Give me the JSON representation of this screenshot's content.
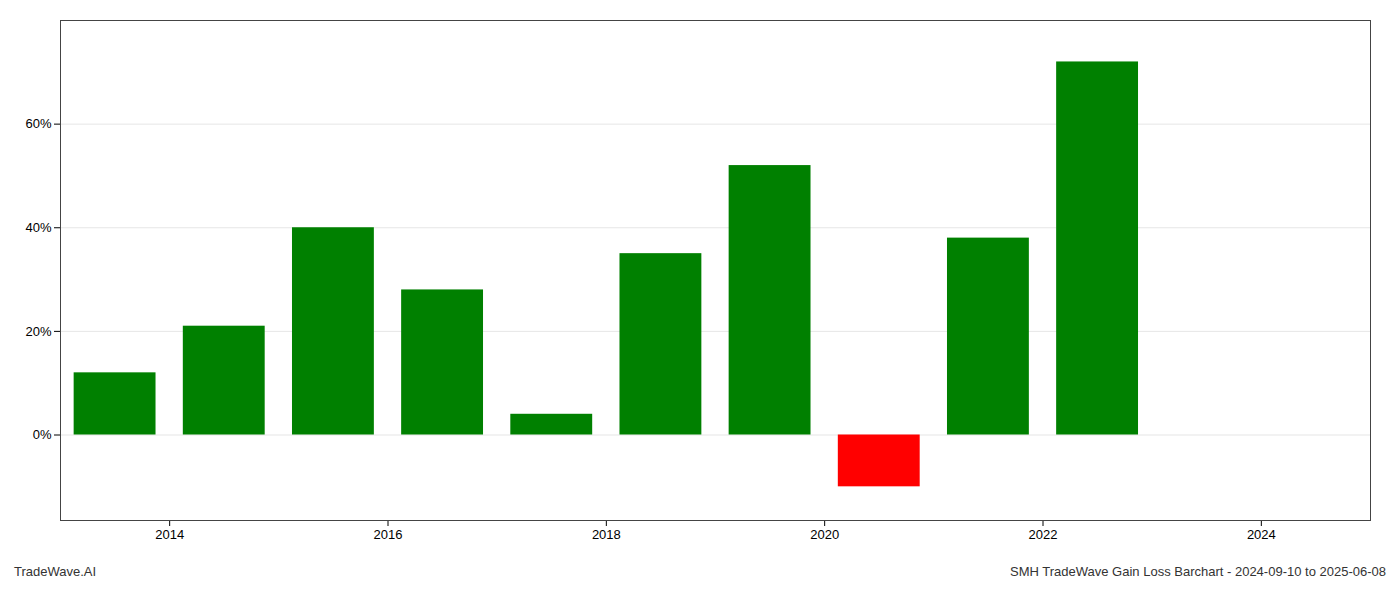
{
  "chart_data": {
    "type": "bar",
    "x": [
      2013.5,
      2014.5,
      2015.5,
      2016.5,
      2017.5,
      2018.5,
      2019.5,
      2020.5,
      2021.5,
      2022.5
    ],
    "values": [
      0.12,
      0.21,
      0.4,
      0.28,
      0.04,
      0.35,
      0.52,
      -0.1,
      0.38,
      0.72
    ],
    "colors": [
      "#008000",
      "#008000",
      "#008000",
      "#008000",
      "#008000",
      "#008000",
      "#008000",
      "#ff0000",
      "#008000",
      "#008000"
    ],
    "xlim": [
      2013.0,
      2025.0
    ],
    "xticks": [
      2014,
      2016,
      2018,
      2020,
      2022,
      2024
    ],
    "ylim": [
      -0.165,
      0.8
    ],
    "yticks": [
      {
        "value": 0.0,
        "label": "0%"
      },
      {
        "value": 0.2,
        "label": "20%"
      },
      {
        "value": 0.4,
        "label": "40%"
      },
      {
        "value": 0.6,
        "label": "60%"
      }
    ],
    "grid": true,
    "annotations": [
      "TradeWave.AI",
      "SMH TradeWave Gain Loss Barchart - 2024-09-10 to 2025-06-08"
    ]
  }
}
